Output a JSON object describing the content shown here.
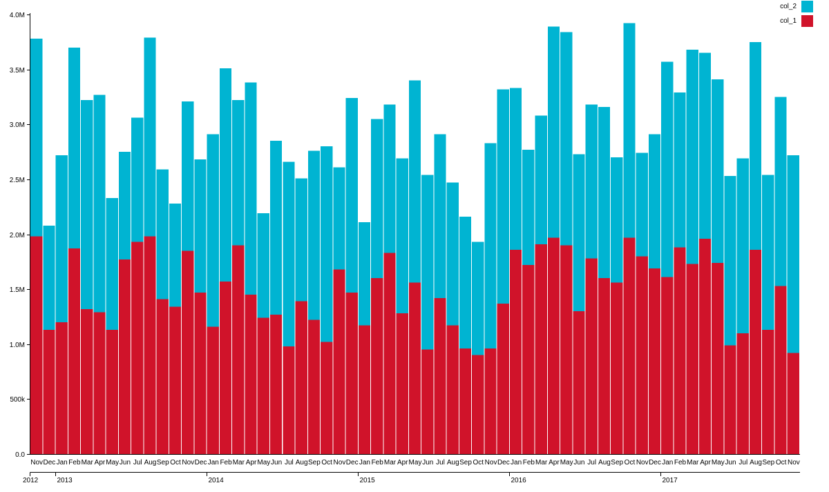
{
  "chart_data": {
    "type": "bar",
    "stacked": true,
    "title": "",
    "xlabel": "",
    "ylabel": "",
    "ylim": [
      0,
      4000000
    ],
    "grid": false,
    "y_ticks": [
      {
        "value": 0,
        "label": "0.0"
      },
      {
        "value": 500000,
        "label": "500k"
      },
      {
        "value": 1000000,
        "label": "1.0M"
      },
      {
        "value": 1500000,
        "label": "1.5M"
      },
      {
        "value": 2000000,
        "label": "2.0M"
      },
      {
        "value": 2500000,
        "label": "2.5M"
      },
      {
        "value": 3000000,
        "label": "3.0M"
      },
      {
        "value": 3500000,
        "label": "3.5M"
      },
      {
        "value": 4000000,
        "label": "4.0M"
      }
    ],
    "categories": [
      "Nov",
      "Dec",
      "Jan",
      "Feb",
      "Mar",
      "Apr",
      "May",
      "Jun",
      "Jul",
      "Aug",
      "Sep",
      "Oct",
      "Nov",
      "Dec",
      "Jan",
      "Feb",
      "Mar",
      "Apr",
      "May",
      "Jun",
      "Jul",
      "Aug",
      "Sep",
      "Oct",
      "Nov",
      "Dec",
      "Jan",
      "Feb",
      "Mar",
      "Apr",
      "May",
      "Jun",
      "Jul",
      "Aug",
      "Sep",
      "Oct",
      "Nov",
      "Dec",
      "Jan",
      "Feb",
      "Mar",
      "Apr",
      "May",
      "Jun",
      "Jul",
      "Aug",
      "Sep",
      "Oct",
      "Nov",
      "Dec",
      "Jan",
      "Feb",
      "Mar",
      "Apr",
      "May",
      "Jun",
      "Jul",
      "Aug",
      "Sep",
      "Oct",
      "Nov"
    ],
    "year_labels": [
      {
        "label": "2012",
        "index": 0
      },
      {
        "label": "2013",
        "index": 2
      },
      {
        "label": "2014",
        "index": 14
      },
      {
        "label": "2015",
        "index": 26
      },
      {
        "label": "2016",
        "index": 38
      },
      {
        "label": "2017",
        "index": 50
      }
    ],
    "legend_position": "top-right",
    "series": [
      {
        "name": "col_1",
        "color": "#d0132a",
        "values": [
          1980000,
          1130000,
          1200000,
          1870000,
          1320000,
          1290000,
          1130000,
          1770000,
          1930000,
          1980000,
          1410000,
          1340000,
          1850000,
          1470000,
          1160000,
          1570000,
          1900000,
          1450000,
          1240000,
          1270000,
          980000,
          1390000,
          1220000,
          1020000,
          1680000,
          1470000,
          1170000,
          1600000,
          1830000,
          1280000,
          1560000,
          950000,
          1420000,
          1170000,
          960000,
          900000,
          960000,
          1370000,
          1860000,
          1720000,
          1910000,
          1970000,
          1900000,
          1300000,
          1780000,
          1600000,
          1560000,
          1970000,
          1800000,
          1690000,
          1610000,
          1880000,
          1730000,
          1960000,
          1740000,
          990000,
          1100000,
          1860000,
          1130000,
          1530000,
          920000
        ]
      },
      {
        "name": "col_2",
        "color": "#00b4d2",
        "values": [
          1800000,
          950000,
          1520000,
          1830000,
          1900000,
          1980000,
          1200000,
          980000,
          1130000,
          1810000,
          1180000,
          940000,
          1360000,
          1210000,
          1750000,
          1940000,
          1320000,
          1930000,
          950000,
          1580000,
          1680000,
          1120000,
          1540000,
          1780000,
          930000,
          1770000,
          940000,
          1450000,
          1350000,
          1410000,
          1840000,
          1590000,
          1490000,
          1300000,
          1200000,
          1030000,
          1870000,
          1950000,
          1470000,
          1050000,
          1170000,
          1920000,
          1940000,
          1430000,
          1400000,
          1560000,
          1140000,
          1950000,
          940000,
          1220000,
          1960000,
          1410000,
          1950000,
          1690000,
          1670000,
          1540000,
          1590000,
          1890000,
          1410000,
          1720000,
          1800000
        ]
      }
    ]
  }
}
